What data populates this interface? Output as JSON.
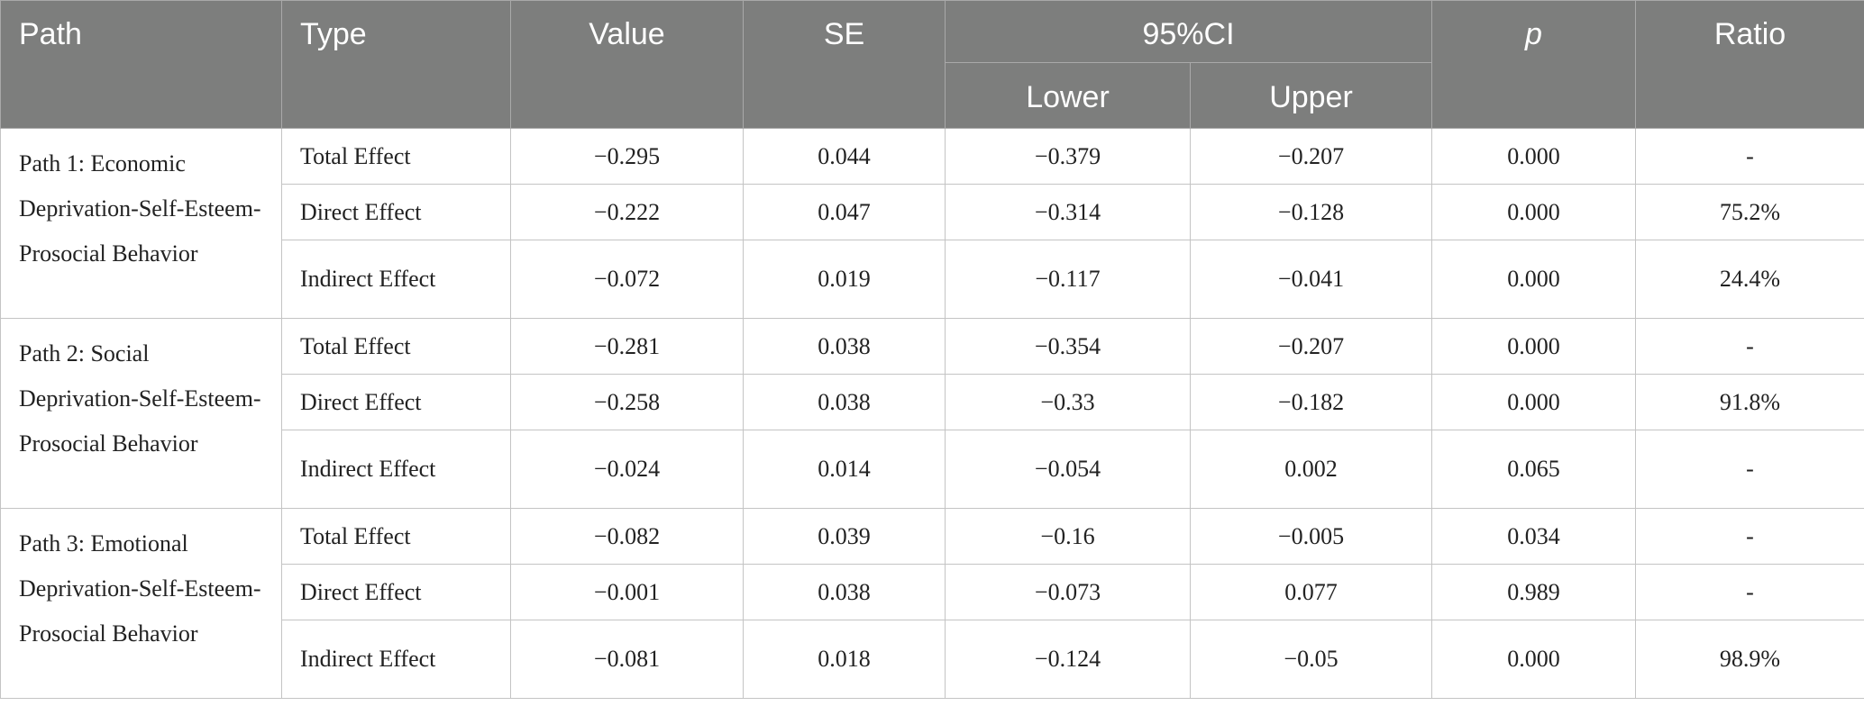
{
  "table": {
    "headers": {
      "path": "Path",
      "type": "Type",
      "value": "Value",
      "se": "SE",
      "ci": "95%CI",
      "lower": "Lower",
      "upper": "Upper",
      "p": "p",
      "ratio": "Ratio"
    },
    "groups": [
      {
        "path": "Path 1: Economic Deprivation-Self-Esteem-Prosocial Behavior",
        "rows": [
          {
            "type": "Total Effect",
            "value": "−0.295",
            "se": "0.044",
            "lower": "−0.379",
            "upper": "−0.207",
            "p": "0.000",
            "ratio": "-"
          },
          {
            "type": "Direct Effect",
            "value": "−0.222",
            "se": "0.047",
            "lower": "−0.314",
            "upper": "−0.128",
            "p": "0.000",
            "ratio": "75.2%"
          },
          {
            "type": "Indirect Effect",
            "value": "−0.072",
            "se": "0.019",
            "lower": "−0.117",
            "upper": "−0.041",
            "p": "0.000",
            "ratio": "24.4%"
          }
        ]
      },
      {
        "path": "Path 2: Social Deprivation-Self-Esteem-Prosocial Behavior",
        "rows": [
          {
            "type": "Total Effect",
            "value": "−0.281",
            "se": "0.038",
            "lower": "−0.354",
            "upper": "−0.207",
            "p": "0.000",
            "ratio": "-"
          },
          {
            "type": "Direct Effect",
            "value": "−0.258",
            "se": "0.038",
            "lower": "−0.33",
            "upper": "−0.182",
            "p": "0.000",
            "ratio": "91.8%"
          },
          {
            "type": "Indirect Effect",
            "value": "−0.024",
            "se": "0.014",
            "lower": "−0.054",
            "upper": "0.002",
            "p": "0.065",
            "ratio": "-"
          }
        ]
      },
      {
        "path": "Path 3: Emotional Deprivation-Self-Esteem-Prosocial Behavior",
        "rows": [
          {
            "type": "Total Effect",
            "value": "−0.082",
            "se": "0.039",
            "lower": "−0.16",
            "upper": "−0.005",
            "p": "0.034",
            "ratio": "-"
          },
          {
            "type": "Direct Effect",
            "value": "−0.001",
            "se": "0.038",
            "lower": "−0.073",
            "upper": "0.077",
            "p": "0.989",
            "ratio": "-"
          },
          {
            "type": "Indirect Effect",
            "value": "−0.081",
            "se": "0.018",
            "lower": "−0.124",
            "upper": "−0.05",
            "p": "0.000",
            "ratio": "98.9%"
          }
        ]
      }
    ]
  }
}
